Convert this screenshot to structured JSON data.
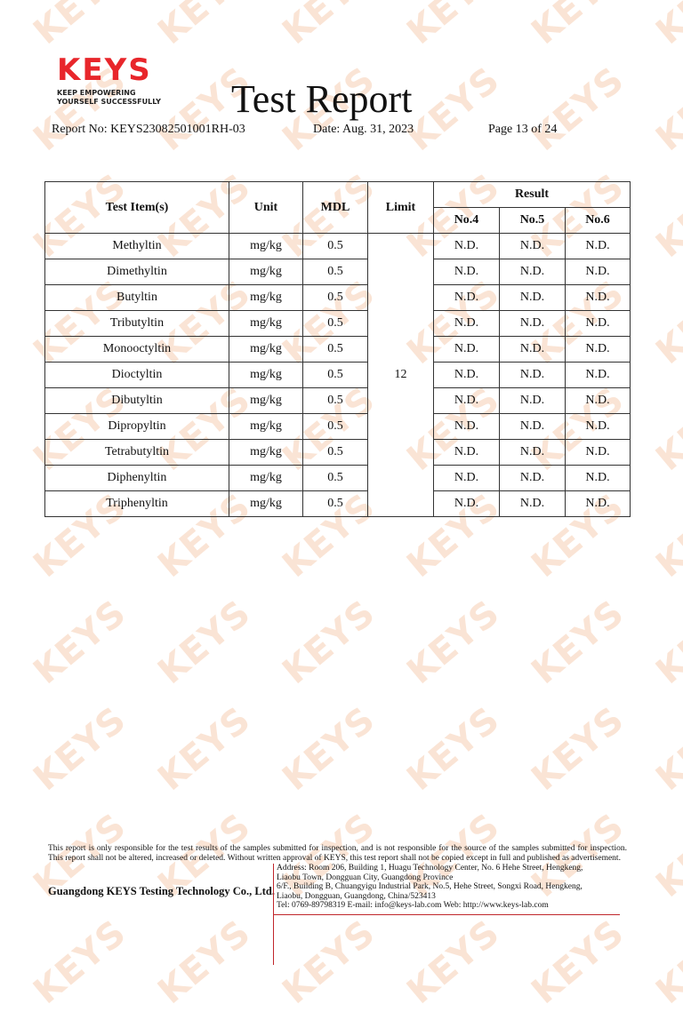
{
  "logo": {
    "mark": "KEYS",
    "tagline_1": "KEEP EMPOWERING",
    "tagline_2": "YOURSELF SUCCESSFULLY",
    "color": "#e8262b"
  },
  "watermark": "KEYS",
  "header": {
    "title": "Test Report",
    "report_no": "Report No: KEYS23082501001RH-03",
    "date": "Date: Aug. 31, 2023",
    "page": "Page 13 of 24"
  },
  "table": {
    "headers": {
      "item": "Test Item(s)",
      "unit": "Unit",
      "mdl": "MDL",
      "limit": "Limit",
      "result": "Result",
      "samples": [
        "No.4",
        "No.5",
        "No.6"
      ]
    },
    "limit": "12",
    "rows": [
      {
        "item": "Methyltin",
        "unit": "mg/kg",
        "mdl": "0.5",
        "results": [
          "N.D.",
          "N.D.",
          "N.D."
        ]
      },
      {
        "item": "Dimethyltin",
        "unit": "mg/kg",
        "mdl": "0.5",
        "results": [
          "N.D.",
          "N.D.",
          "N.D."
        ]
      },
      {
        "item": "Butyltin",
        "unit": "mg/kg",
        "mdl": "0.5",
        "results": [
          "N.D.",
          "N.D.",
          "N.D."
        ]
      },
      {
        "item": "Tributyltin",
        "unit": "mg/kg",
        "mdl": "0.5",
        "results": [
          "N.D.",
          "N.D.",
          "N.D."
        ]
      },
      {
        "item": "Monooctyltin",
        "unit": "mg/kg",
        "mdl": "0.5",
        "results": [
          "N.D.",
          "N.D.",
          "N.D."
        ]
      },
      {
        "item": "Dioctyltin",
        "unit": "mg/kg",
        "mdl": "0.5",
        "results": [
          "N.D.",
          "N.D.",
          "N.D."
        ]
      },
      {
        "item": "Dibutyltin",
        "unit": "mg/kg",
        "mdl": "0.5",
        "results": [
          "N.D.",
          "N.D.",
          "N.D."
        ]
      },
      {
        "item": "Dipropyltin",
        "unit": "mg/kg",
        "mdl": "0.5",
        "results": [
          "N.D.",
          "N.D.",
          "N.D."
        ]
      },
      {
        "item": "Tetrabutyltin",
        "unit": "mg/kg",
        "mdl": "0.5",
        "results": [
          "N.D.",
          "N.D.",
          "N.D."
        ]
      },
      {
        "item": "Diphenyltin",
        "unit": "mg/kg",
        "mdl": "0.5",
        "results": [
          "N.D.",
          "N.D.",
          "N.D."
        ]
      },
      {
        "item": "Triphenyltin",
        "unit": "mg/kg",
        "mdl": "0.5",
        "results": [
          "N.D.",
          "N.D.",
          "N.D."
        ]
      }
    ]
  },
  "footer": {
    "disclaimer": "This report is only responsible for the test results of the samples submitted for inspection, and is not responsible for the source of the samples submitted for inspection. This report shall not be altered, increased or deleted. Without written approval of KEYS, this test report shall not be copied except in full and published as advertisement.",
    "company": "Guangdong KEYS Testing Technology Co., Ltd.",
    "address_lines": [
      "Address: Room 206, Building 1, Huagu Technology Center, No. 6 Hehe Street, Hengkeng,",
      "Liaobu Town, Dongguan City, Guangdong Province",
      "6/F., Building B, Chuangyigu Industrial Park, No.5, Hehe Street, Songxi Road, Hengkeng,",
      "Liaobu, Dongguan, Guangdong, China/523413",
      "Tel: 0769-89798319 E-mail: info@keys-lab.com Web: http://www.keys-lab.com"
    ]
  }
}
